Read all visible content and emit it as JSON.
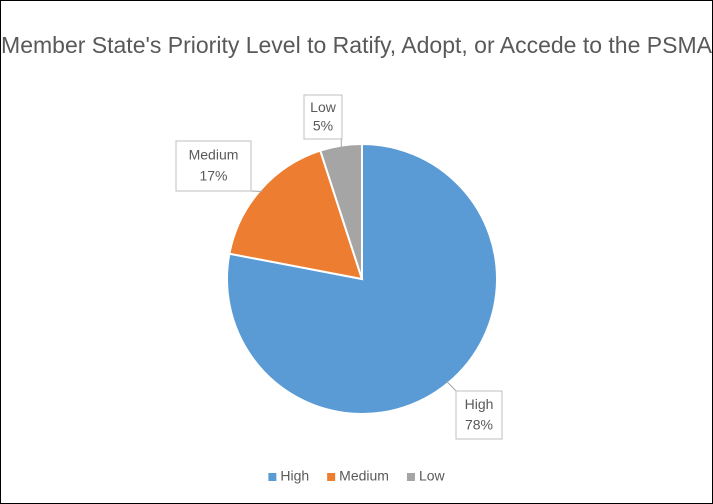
{
  "chart_data": {
    "type": "pie",
    "title": "Member State's Priority Level to Ratify, Adopt, or Accede to the PSMA",
    "categories": [
      "High",
      "Medium",
      "Low"
    ],
    "values": [
      78,
      17,
      5
    ],
    "value_labels": [
      "78%",
      "17%",
      "5%"
    ],
    "colors": [
      "#5b9bd5",
      "#ed7d31",
      "#a5a5a5"
    ],
    "legend": "bottom"
  }
}
